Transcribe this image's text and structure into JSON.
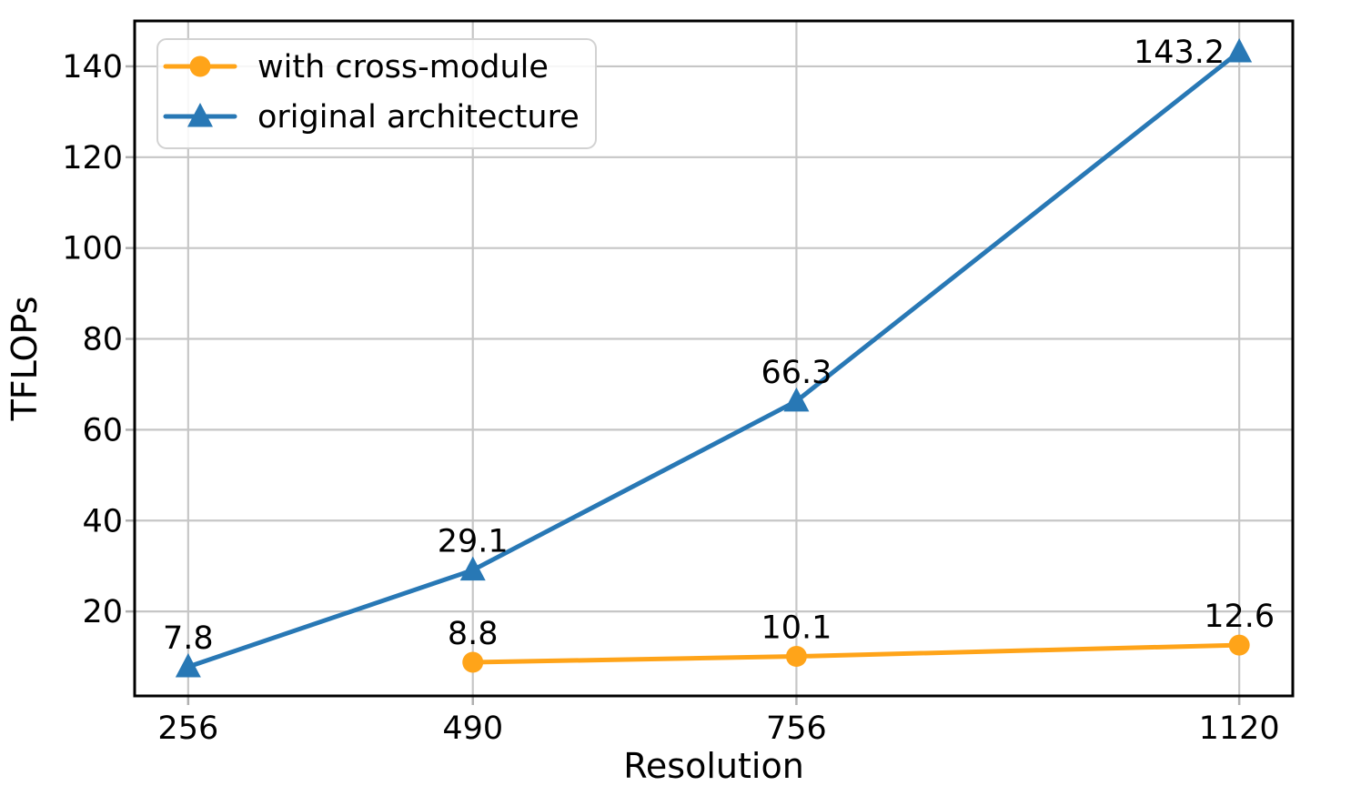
{
  "figure": {
    "background": "#ffffff",
    "frame_color": "#000000"
  },
  "chart_data": {
    "type": "line",
    "title": "",
    "xlabel": "Resolution",
    "ylabel": "TFLOPs",
    "x_tick_values": [
      256,
      490,
      756,
      1120
    ],
    "x_tick_labels": [
      "256",
      "490",
      "756",
      "1120"
    ],
    "y_tick_values": [
      20,
      40,
      60,
      80,
      100,
      120,
      140
    ],
    "y_tick_labels": [
      "20",
      "40",
      "60",
      "80",
      "100",
      "120",
      "140"
    ],
    "xlim": [
      212,
      1164
    ],
    "ylim": [
      1.4,
      150
    ],
    "grid": true,
    "grid_color": "#c6c6c6",
    "tick_color": "#b0b0b0",
    "legend": {
      "position": "upper-left",
      "border_color": "#d2d2d2",
      "entries": [
        "with cross-module",
        "original architecture"
      ]
    },
    "series": [
      {
        "name": "with cross-module",
        "color": "#FFA419",
        "marker": "circle",
        "x": [
          490,
          756,
          1120
        ],
        "y": [
          8.8,
          10.1,
          12.6
        ],
        "point_labels": [
          "8.8",
          "10.1",
          "12.6"
        ],
        "point_label_positions": [
          "above",
          "above",
          "above"
        ]
      },
      {
        "name": "original architecture",
        "color": "#2878B5",
        "marker": "triangle",
        "x": [
          256,
          490,
          756,
          1120
        ],
        "y": [
          7.8,
          29.1,
          66.3,
          143.2
        ],
        "point_labels": [
          "7.8",
          "29.1",
          "66.3",
          "143.2"
        ],
        "point_label_positions": [
          "above",
          "above",
          "above",
          "left"
        ]
      }
    ]
  }
}
